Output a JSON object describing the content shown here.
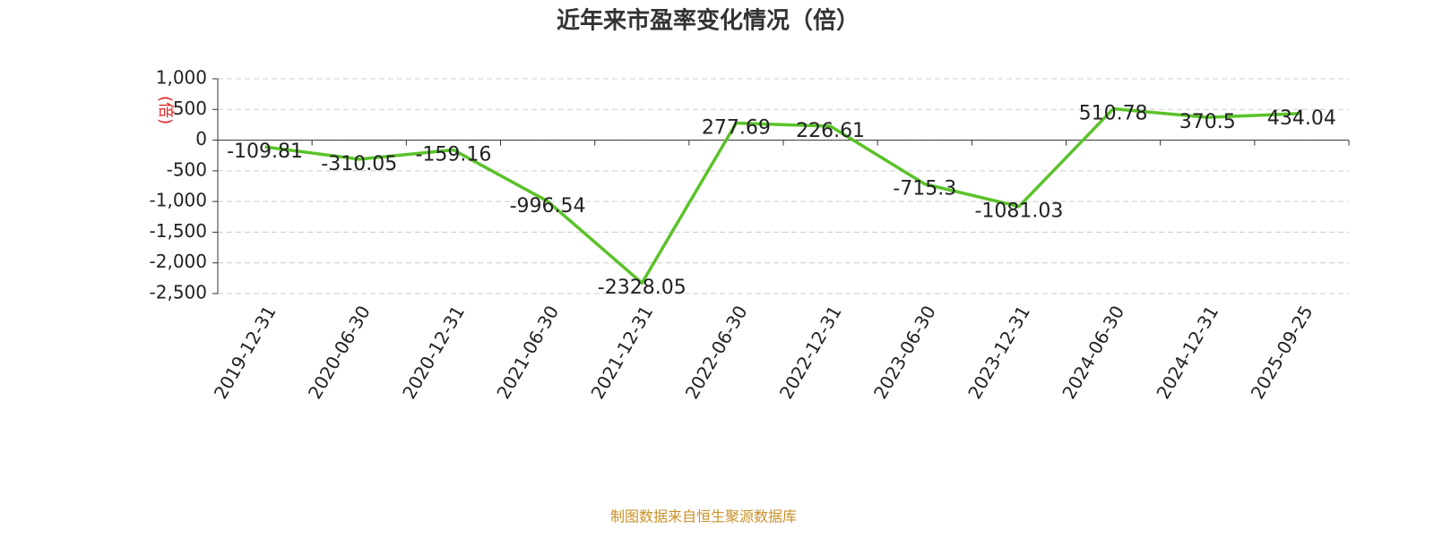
{
  "chart_data": {
    "type": "line",
    "title": "近年来市盈率变化情况（倍）",
    "y_label": "(倍)",
    "categories": [
      "2019-12-31",
      "2020-06-30",
      "2020-12-31",
      "2021-06-30",
      "2021-12-31",
      "2022-06-30",
      "2022-12-31",
      "2023-06-30",
      "2023-12-31",
      "2024-06-30",
      "2024-12-31",
      "2025-09-25"
    ],
    "series": [
      {
        "name": "市盈率",
        "color": "#5ac229",
        "values": [
          -109.81,
          -310.05,
          -159.16,
          -996.54,
          -2328.05,
          277.69,
          226.61,
          -715.3,
          -1081.03,
          510.78,
          370.5,
          434.04
        ]
      }
    ],
    "ylim": [
      -2500,
      1000
    ],
    "yticks": [
      {
        "value": 1000,
        "label": "1,000"
      },
      500,
      0,
      -500,
      {
        "value": -1000,
        "label": "-1,000"
      },
      {
        "value": -1500,
        "label": "-1,500"
      },
      {
        "value": -2000,
        "label": "-2,000"
      },
      {
        "value": -2500,
        "label": "-2,500"
      }
    ],
    "grid": true,
    "source": "制图数据来自恒生聚源数据库"
  }
}
